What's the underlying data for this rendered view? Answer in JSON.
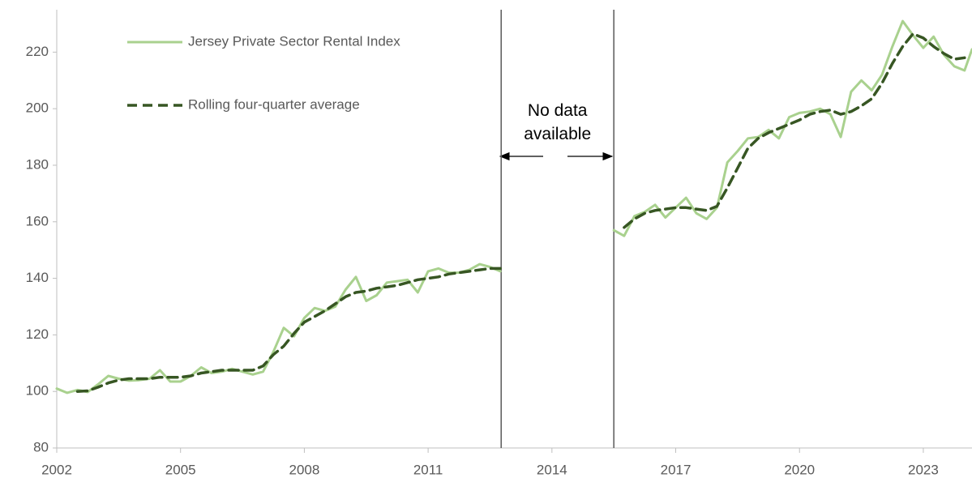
{
  "chart_data": {
    "type": "line",
    "annotation": "No data\navailable",
    "vlines": [
      2012.77,
      2015.5
    ],
    "xlim": [
      2002,
      2024.18
    ],
    "xticks": [
      2002,
      2005,
      2008,
      2011,
      2014,
      2017,
      2020,
      2023
    ],
    "ylim": [
      80,
      235
    ],
    "yticks": [
      80,
      100,
      120,
      140,
      160,
      180,
      200,
      220
    ],
    "grid": false,
    "legend": "upper left",
    "series": [
      {
        "name": "Jersey Private Sector Rental Index",
        "color": "#a9d18e",
        "style": "solid",
        "x": [
          2002,
          2002.25,
          2002.5,
          2002.75,
          2003,
          2003.25,
          2003.5,
          2003.75,
          2004,
          2004.25,
          2004.5,
          2004.75,
          2005,
          2005.25,
          2005.5,
          2005.75,
          2006,
          2006.25,
          2006.5,
          2006.75,
          2007,
          2007.25,
          2007.5,
          2007.75,
          2008,
          2008.25,
          2008.5,
          2008.75,
          2009,
          2009.25,
          2009.5,
          2009.75,
          2010,
          2010.25,
          2010.5,
          2010.75,
          2011,
          2011.25,
          2011.5,
          2011.75,
          2012,
          2012.25,
          2012.5,
          2012.75,
          2014,
          2015.5,
          2015.75,
          2016,
          2016.25,
          2016.5,
          2016.75,
          2017,
          2017.25,
          2017.5,
          2017.75,
          2018,
          2018.25,
          2018.5,
          2018.75,
          2019,
          2019.25,
          2019.5,
          2019.75,
          2020,
          2020.25,
          2020.5,
          2020.75,
          2021,
          2021.25,
          2021.5,
          2021.75,
          2022,
          2022.25,
          2022.5,
          2022.75,
          2023,
          2023.25,
          2023.5,
          2023.75,
          2024,
          2024.18
        ],
        "values": [
          101,
          99.5,
          100.5,
          99.8,
          102.5,
          105.5,
          104.5,
          103.8,
          104,
          104.5,
          107.5,
          103.5,
          103.5,
          105.5,
          108.5,
          106.5,
          107,
          108,
          107,
          106,
          107,
          114,
          122.5,
          119.5,
          126,
          129.5,
          128.5,
          130,
          136,
          140.5,
          132,
          134,
          138.5,
          139,
          139.5,
          135,
          142.5,
          143.5,
          142,
          142,
          143,
          145,
          144,
          142.5,
          null,
          157,
          155,
          162,
          163.5,
          166,
          161.5,
          165,
          168.5,
          163,
          161,
          165,
          181,
          185,
          189.5,
          190,
          192.5,
          189.5,
          197,
          198.5,
          199,
          200,
          198,
          190,
          206,
          210,
          206.5,
          212,
          222,
          231,
          226,
          221.5,
          225.5,
          219,
          215,
          213.5,
          221
        ]
      },
      {
        "name": "Rolling four-quarter average",
        "color": "#375623",
        "style": "dashed",
        "x": [
          2002.5,
          2002.75,
          2003,
          2003.25,
          2003.5,
          2003.75,
          2004,
          2004.25,
          2004.5,
          2004.75,
          2005,
          2005.25,
          2005.5,
          2005.75,
          2006,
          2006.25,
          2006.5,
          2006.75,
          2007,
          2007.25,
          2007.5,
          2007.75,
          2008,
          2008.25,
          2008.5,
          2008.75,
          2009,
          2009.25,
          2009.5,
          2009.75,
          2010,
          2010.25,
          2010.5,
          2010.75,
          2011,
          2011.25,
          2011.5,
          2011.75,
          2012,
          2012.25,
          2012.5,
          2012.75,
          2014,
          2015.75,
          2016,
          2016.25,
          2016.5,
          2016.75,
          2017,
          2017.25,
          2017.5,
          2017.75,
          2018,
          2018.25,
          2018.5,
          2018.75,
          2019,
          2019.25,
          2019.5,
          2019.75,
          2020,
          2020.25,
          2020.5,
          2020.75,
          2021,
          2021.25,
          2021.5,
          2021.75,
          2022,
          2022.25,
          2022.5,
          2022.75,
          2023,
          2023.25,
          2023.5,
          2023.75,
          2024
        ],
        "values": [
          100,
          100.2,
          101.5,
          103,
          104,
          104.5,
          104.5,
          104.5,
          105,
          105,
          105,
          105.5,
          106.5,
          107,
          107.5,
          107.5,
          107.5,
          107.5,
          109,
          113,
          116,
          120.5,
          124.5,
          126.5,
          128.5,
          131,
          133.5,
          135,
          135.5,
          136.5,
          137,
          137.5,
          138.5,
          139.5,
          140,
          140.5,
          141.5,
          142,
          142.5,
          143,
          143.5,
          143.5,
          null,
          158,
          161,
          163,
          164,
          164.5,
          165,
          165,
          164.5,
          164,
          165.5,
          172,
          179,
          186,
          189.5,
          191.5,
          193,
          194.5,
          196,
          198,
          199,
          199.5,
          198,
          199,
          201,
          203.5,
          209,
          216,
          222,
          226.5,
          225,
          222,
          219.5,
          217.5,
          218
        ]
      }
    ]
  }
}
